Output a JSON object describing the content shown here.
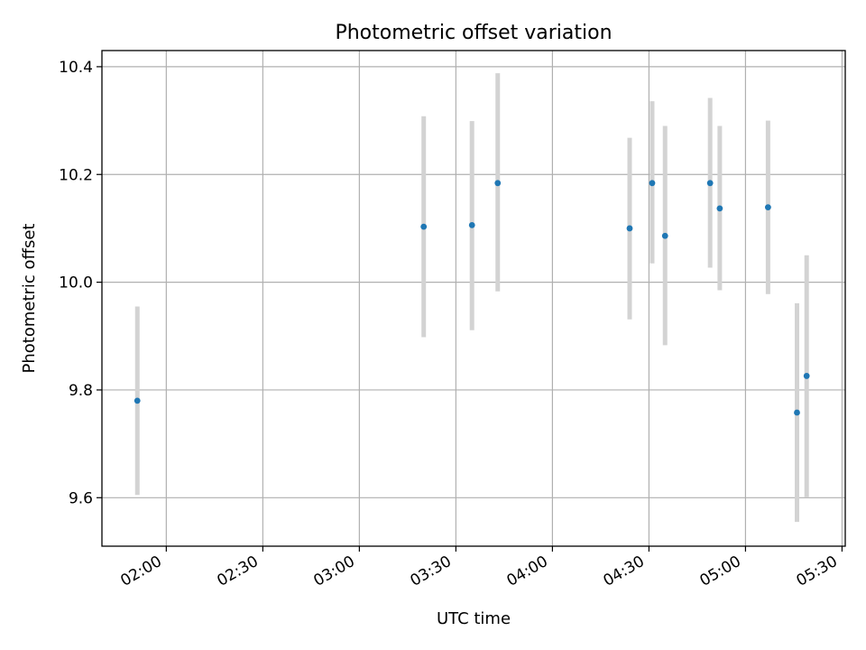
{
  "chart_data": {
    "type": "scatter",
    "title": "Photometric offset variation",
    "xlabel": "UTC time",
    "ylabel": "Photometric offset",
    "x_axis_type": "time",
    "xlim": [
      "01:40",
      "05:31"
    ],
    "ylim": [
      9.51,
      10.43
    ],
    "xticks": [
      "02:00",
      "02:30",
      "03:00",
      "03:30",
      "04:00",
      "04:30",
      "05:00",
      "05:30"
    ],
    "yticks": [
      "9.6",
      "9.8",
      "10.0",
      "10.2",
      "10.4"
    ],
    "grid": true,
    "legend": "none",
    "points": [
      {
        "x": "01:51",
        "y": 9.78,
        "ylow": 9.605,
        "yhigh": 9.955
      },
      {
        "x": "03:20",
        "y": 10.103,
        "ylow": 9.898,
        "yhigh": 10.308
      },
      {
        "x": "03:35",
        "y": 10.106,
        "ylow": 9.911,
        "yhigh": 10.299
      },
      {
        "x": "03:43",
        "y": 10.184,
        "ylow": 9.983,
        "yhigh": 10.388
      },
      {
        "x": "04:24",
        "y": 10.1,
        "ylow": 9.931,
        "yhigh": 10.268
      },
      {
        "x": "04:31",
        "y": 10.184,
        "ylow": 10.035,
        "yhigh": 10.336
      },
      {
        "x": "04:35",
        "y": 10.086,
        "ylow": 9.883,
        "yhigh": 10.29
      },
      {
        "x": "04:49",
        "y": 10.184,
        "ylow": 10.027,
        "yhigh": 10.342
      },
      {
        "x": "04:52",
        "y": 10.137,
        "ylow": 9.985,
        "yhigh": 10.29
      },
      {
        "x": "05:07",
        "y": 10.139,
        "ylow": 9.978,
        "yhigh": 10.3
      },
      {
        "x": "05:16",
        "y": 9.758,
        "ylow": 9.555,
        "yhigh": 9.961
      },
      {
        "x": "05:19",
        "y": 9.826,
        "ylow": 9.601,
        "yhigh": 10.05
      }
    ],
    "colors": {
      "point": "#1f77b4",
      "errorbar": "#d3d3d3",
      "grid": "#b0b0b0",
      "axis": "#000000"
    }
  }
}
